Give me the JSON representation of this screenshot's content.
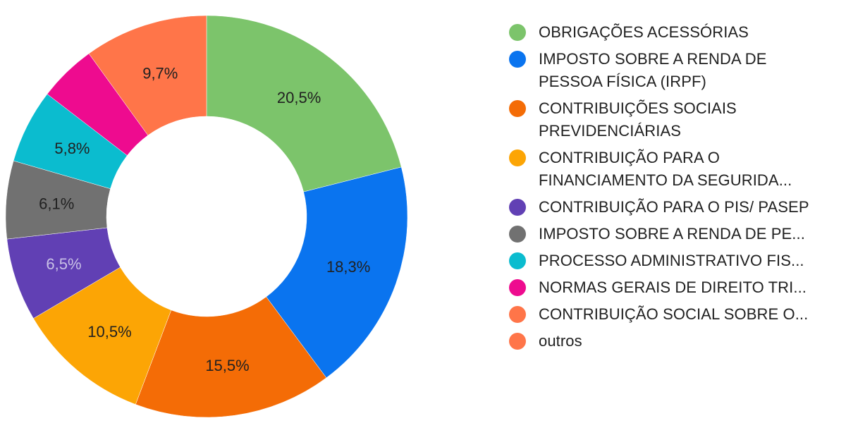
{
  "chart_data": {
    "type": "pie",
    "donut": true,
    "legend_position": "right",
    "series": [
      {
        "name": "OBRIGAÇÕES ACESSÓRIAS",
        "value": 20.5,
        "label": "20,5%",
        "color": "#7cc46b",
        "label_color": "#212121"
      },
      {
        "name": "IMPOSTO SOBRE A RENDA DE PESSOA FÍSICA (IRPF)",
        "value": 18.3,
        "label": "18,3%",
        "color": "#0a74ef",
        "label_color": "#212121"
      },
      {
        "name": "CONTRIBUIÇÕES SOCIAIS PREVIDENCIÁRIAS",
        "value": 15.5,
        "label": "15,5%",
        "color": "#f46c06",
        "label_color": "#212121"
      },
      {
        "name": "CONTRIBUIÇÃO PARA O FINANCIAMENTO DA SEGURIDA...",
        "value": 10.5,
        "label": "10,5%",
        "color": "#fca505",
        "label_color": "#212121"
      },
      {
        "name": "CONTRIBUIÇÃO PARA O PIS/ PASEP",
        "value": 6.5,
        "label": "6,5%",
        "color": "#6140b4",
        "label_color": "#c9c1e6"
      },
      {
        "name": "IMPOSTO SOBRE A RENDA DE PE...",
        "value": 6.1,
        "label": "6,1%",
        "color": "#717171",
        "label_color": "#212121"
      },
      {
        "name": "PROCESSO ADMINISTRATIVO FIS...",
        "value": 5.8,
        "label": "5,8%",
        "color": "#0bbccf",
        "label_color": "#212121"
      },
      {
        "name": "NORMAS GERAIS DE DIREITO TRI...",
        "value": 4.5,
        "label": "",
        "color": "#ee0b8f",
        "label_color": "#212121"
      },
      {
        "name": "CONTRIBUIÇÃO SOCIAL SOBRE O...",
        "value": 9.7,
        "label": "9,7%",
        "color": "#ff7549",
        "label_color": "#212121"
      },
      {
        "name": "outros",
        "value": 0,
        "label": "",
        "color": "#ff7549",
        "label_color": "#212121"
      }
    ]
  }
}
